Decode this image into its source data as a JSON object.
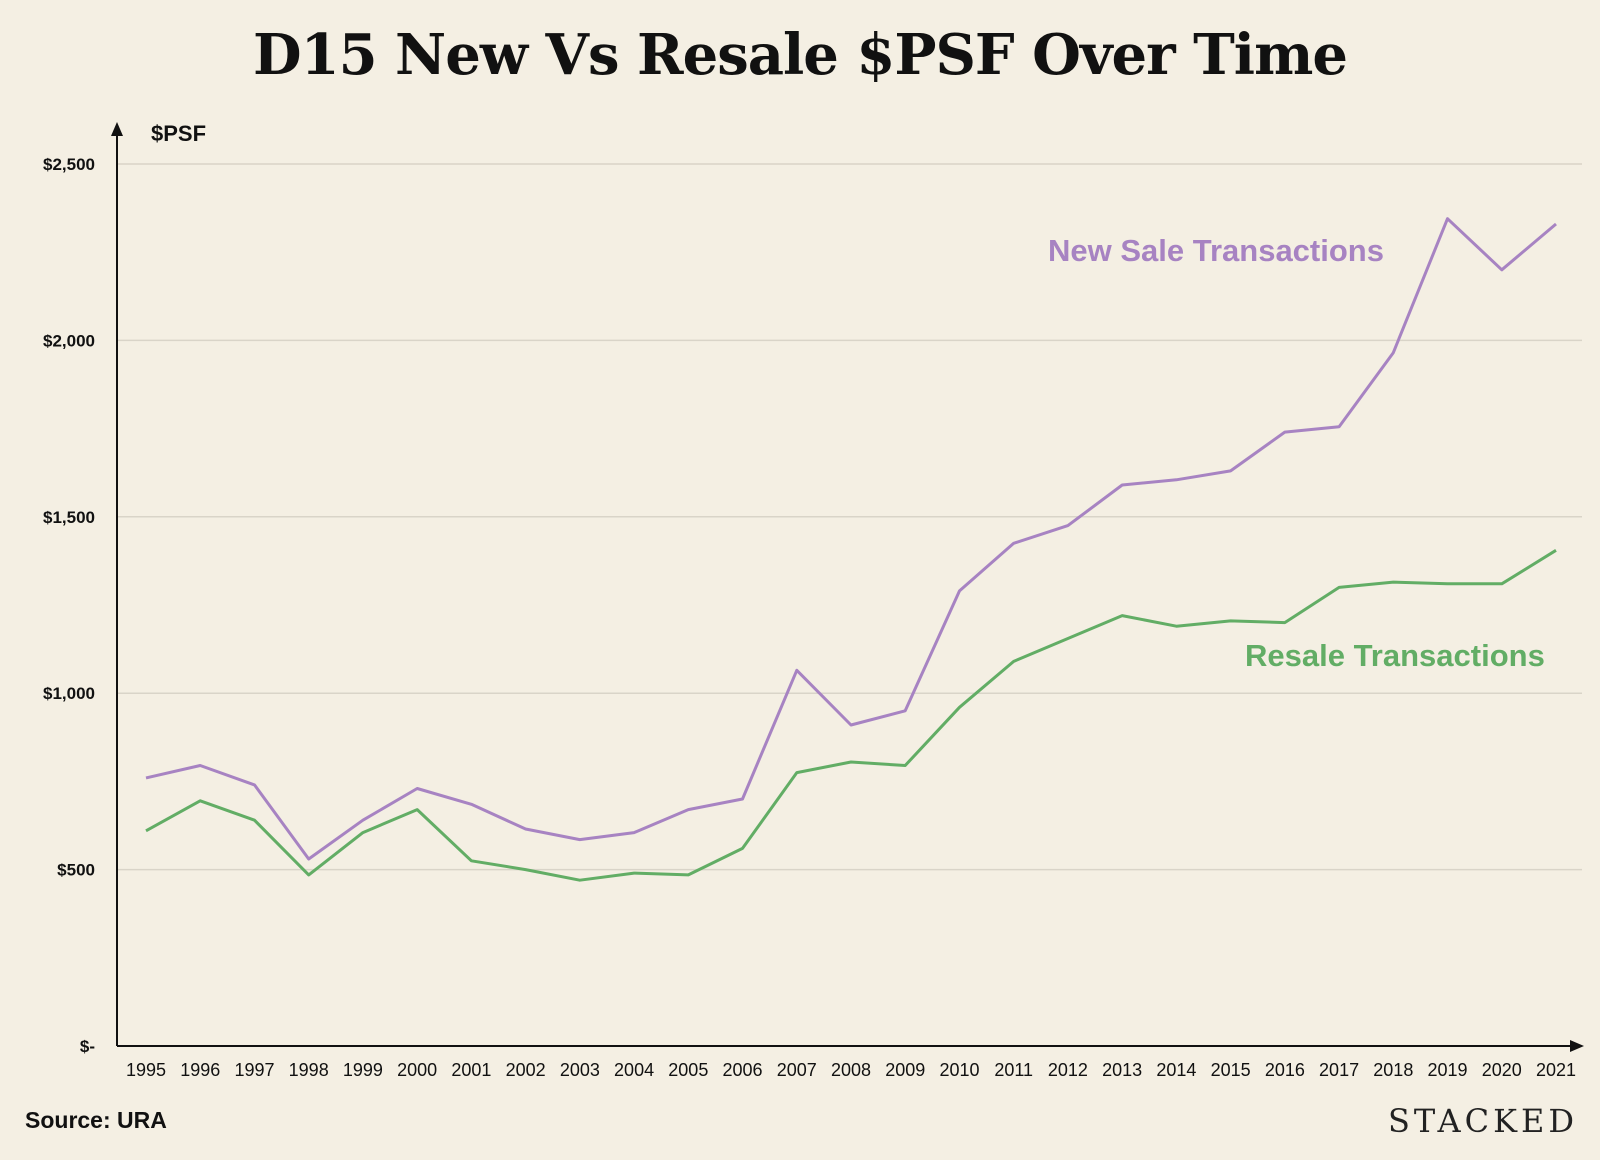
{
  "title": "D15 New Vs Resale $PSF Over Time",
  "source": "Source: URA",
  "brand": "STACKED",
  "colors": {
    "background": "#f4efe3",
    "new_sale": "#a783c2",
    "resale": "#62ad65",
    "grid": "#d9d4c8",
    "axis": "#111111"
  },
  "chart_data": {
    "type": "line",
    "title": "D15 New Vs Resale $PSF Over Time",
    "ylabel": "$PSF",
    "xlabel": "",
    "ylim": [
      0,
      2500
    ],
    "yticks": [
      0,
      500,
      1000,
      1500,
      2000,
      2500
    ],
    "ytick_labels": [
      "$-",
      "$500",
      "$1,000",
      "$1,500",
      "$2,000",
      "$2,500"
    ],
    "grid": "horizontal",
    "legend": "inline labels",
    "categories": [
      "1995",
      "1996",
      "1997",
      "1998",
      "1999",
      "2000",
      "2001",
      "2002",
      "2003",
      "2004",
      "2005",
      "2006",
      "2007",
      "2008",
      "2009",
      "2010",
      "2011",
      "2012",
      "2013",
      "2014",
      "2015",
      "2016",
      "2017",
      "2018",
      "2019",
      "2020",
      "2021"
    ],
    "series": [
      {
        "name": "New Sale Transactions",
        "color": "#a783c2",
        "values": [
          760,
          795,
          740,
          530,
          640,
          730,
          685,
          615,
          585,
          605,
          670,
          700,
          1065,
          910,
          950,
          1290,
          1425,
          1475,
          1590,
          1605,
          1630,
          1740,
          1755,
          1965,
          2345,
          2200,
          2330
        ]
      },
      {
        "name": "Resale Transactions",
        "color": "#62ad65",
        "values": [
          610,
          695,
          640,
          485,
          605,
          670,
          525,
          500,
          470,
          490,
          485,
          560,
          775,
          805,
          795,
          960,
          1090,
          1155,
          1220,
          1190,
          1205,
          1200,
          1300,
          1315,
          1310,
          1310,
          1405
        ]
      }
    ]
  }
}
